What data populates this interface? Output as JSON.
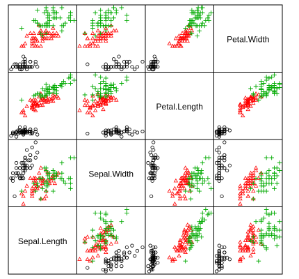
{
  "chart_data": {
    "type": "scatter",
    "kind": "scatterplot-matrix",
    "variables": [
      "Sepal.Length",
      "Sepal.Width",
      "Petal.Length",
      "Petal.Width"
    ],
    "diagonal_labels": {
      "Sepal.Length": "Sepal.Length",
      "Sepal.Width": "Sepal.Width",
      "Petal.Length": "Petal.Length",
      "Petal.Width": "Petal.Width"
    },
    "ranges": {
      "Sepal.Length": [
        4.3,
        7.9
      ],
      "Sepal.Width": [
        2.0,
        4.4
      ],
      "Petal.Length": [
        1.0,
        6.9
      ],
      "Petal.Width": [
        0.1,
        2.5
      ]
    },
    "grid": false,
    "series": [
      {
        "color": "#000000",
        "marker": "circle",
        "points": [
          [
            5.1,
            3.5,
            1.4,
            0.2
          ],
          [
            4.9,
            3.0,
            1.4,
            0.2
          ],
          [
            4.7,
            3.2,
            1.3,
            0.2
          ],
          [
            4.6,
            3.1,
            1.5,
            0.2
          ],
          [
            5.0,
            3.6,
            1.4,
            0.2
          ],
          [
            5.4,
            3.9,
            1.7,
            0.4
          ],
          [
            4.6,
            3.4,
            1.4,
            0.3
          ],
          [
            5.0,
            3.4,
            1.5,
            0.2
          ],
          [
            4.4,
            2.9,
            1.4,
            0.2
          ],
          [
            4.9,
            3.1,
            1.5,
            0.1
          ],
          [
            5.4,
            3.7,
            1.5,
            0.2
          ],
          [
            4.8,
            3.4,
            1.6,
            0.2
          ],
          [
            4.8,
            3.0,
            1.4,
            0.1
          ],
          [
            4.3,
            3.0,
            1.1,
            0.1
          ],
          [
            5.8,
            4.0,
            1.2,
            0.2
          ],
          [
            5.7,
            4.4,
            1.5,
            0.4
          ],
          [
            5.4,
            3.9,
            1.3,
            0.4
          ],
          [
            5.1,
            3.5,
            1.4,
            0.3
          ],
          [
            5.7,
            3.8,
            1.7,
            0.3
          ],
          [
            5.1,
            3.8,
            1.5,
            0.3
          ],
          [
            5.4,
            3.4,
            1.7,
            0.2
          ],
          [
            5.1,
            3.7,
            1.5,
            0.4
          ],
          [
            4.6,
            3.6,
            1.0,
            0.2
          ],
          [
            5.1,
            3.3,
            1.7,
            0.5
          ],
          [
            4.8,
            3.4,
            1.9,
            0.2
          ],
          [
            5.0,
            3.0,
            1.6,
            0.2
          ],
          [
            5.0,
            3.4,
            1.6,
            0.4
          ],
          [
            5.2,
            3.5,
            1.5,
            0.2
          ],
          [
            5.2,
            3.4,
            1.4,
            0.2
          ],
          [
            4.7,
            3.2,
            1.6,
            0.2
          ],
          [
            4.8,
            3.1,
            1.6,
            0.2
          ],
          [
            5.4,
            3.4,
            1.5,
            0.4
          ],
          [
            5.2,
            4.1,
            1.5,
            0.1
          ],
          [
            5.5,
            4.2,
            1.4,
            0.2
          ],
          [
            4.9,
            3.1,
            1.5,
            0.2
          ],
          [
            5.0,
            3.2,
            1.2,
            0.2
          ],
          [
            5.5,
            3.5,
            1.3,
            0.2
          ],
          [
            4.9,
            3.6,
            1.4,
            0.1
          ],
          [
            4.4,
            3.0,
            1.3,
            0.2
          ],
          [
            5.1,
            3.4,
            1.5,
            0.2
          ],
          [
            5.0,
            3.5,
            1.3,
            0.3
          ],
          [
            4.5,
            2.3,
            1.3,
            0.3
          ],
          [
            4.4,
            3.2,
            1.3,
            0.2
          ],
          [
            5.0,
            3.5,
            1.6,
            0.6
          ],
          [
            5.1,
            3.8,
            1.9,
            0.4
          ],
          [
            4.8,
            3.0,
            1.4,
            0.3
          ],
          [
            5.1,
            3.8,
            1.6,
            0.2
          ],
          [
            4.6,
            3.2,
            1.4,
            0.2
          ],
          [
            5.3,
            3.7,
            1.5,
            0.2
          ],
          [
            5.0,
            3.3,
            1.4,
            0.2
          ]
        ]
      },
      {
        "color": "#ff0000",
        "marker": "triangle",
        "points": [
          [
            7.0,
            3.2,
            4.7,
            1.4
          ],
          [
            6.4,
            3.2,
            4.5,
            1.5
          ],
          [
            6.9,
            3.1,
            4.9,
            1.5
          ],
          [
            5.5,
            2.3,
            4.0,
            1.3
          ],
          [
            6.5,
            2.8,
            4.6,
            1.5
          ],
          [
            5.7,
            2.8,
            4.5,
            1.3
          ],
          [
            6.3,
            3.3,
            4.7,
            1.6
          ],
          [
            4.9,
            2.4,
            3.3,
            1.0
          ],
          [
            6.6,
            2.9,
            4.6,
            1.3
          ],
          [
            5.2,
            2.7,
            3.9,
            1.4
          ],
          [
            5.0,
            2.0,
            3.5,
            1.0
          ],
          [
            5.9,
            3.0,
            4.2,
            1.5
          ],
          [
            6.0,
            2.2,
            4.0,
            1.0
          ],
          [
            6.1,
            2.9,
            4.7,
            1.4
          ],
          [
            5.6,
            2.9,
            3.6,
            1.3
          ],
          [
            6.7,
            3.1,
            4.4,
            1.4
          ],
          [
            5.6,
            3.0,
            4.5,
            1.5
          ],
          [
            5.8,
            2.7,
            4.1,
            1.0
          ],
          [
            6.2,
            2.2,
            4.5,
            1.5
          ],
          [
            5.6,
            2.5,
            3.9,
            1.1
          ],
          [
            5.9,
            3.2,
            4.8,
            1.8
          ],
          [
            6.1,
            2.8,
            4.0,
            1.3
          ],
          [
            6.3,
            2.5,
            4.9,
            1.5
          ],
          [
            6.1,
            2.8,
            4.7,
            1.2
          ],
          [
            6.4,
            2.9,
            4.3,
            1.3
          ],
          [
            6.6,
            3.0,
            4.4,
            1.4
          ],
          [
            6.8,
            2.8,
            4.8,
            1.4
          ],
          [
            6.7,
            3.0,
            5.0,
            1.7
          ],
          [
            6.0,
            2.9,
            4.5,
            1.5
          ],
          [
            5.7,
            2.6,
            3.5,
            1.0
          ],
          [
            5.5,
            2.4,
            3.8,
            1.1
          ],
          [
            5.5,
            2.4,
            3.7,
            1.0
          ],
          [
            5.8,
            2.7,
            3.9,
            1.2
          ],
          [
            6.0,
            2.7,
            5.1,
            1.6
          ],
          [
            5.4,
            3.0,
            4.5,
            1.5
          ],
          [
            6.0,
            3.4,
            4.5,
            1.6
          ],
          [
            6.7,
            3.1,
            4.7,
            1.5
          ],
          [
            6.3,
            2.3,
            4.4,
            1.3
          ],
          [
            5.6,
            3.0,
            4.1,
            1.3
          ],
          [
            5.5,
            2.5,
            4.0,
            1.3
          ],
          [
            5.5,
            2.6,
            4.4,
            1.2
          ],
          [
            6.1,
            3.0,
            4.6,
            1.4
          ],
          [
            5.8,
            2.6,
            4.0,
            1.2
          ],
          [
            5.0,
            2.3,
            3.3,
            1.0
          ],
          [
            5.6,
            2.7,
            4.2,
            1.3
          ],
          [
            5.7,
            3.0,
            4.2,
            1.2
          ],
          [
            5.7,
            2.9,
            4.2,
            1.3
          ],
          [
            6.2,
            2.9,
            4.3,
            1.3
          ],
          [
            5.1,
            2.5,
            3.0,
            1.1
          ],
          [
            5.7,
            2.8,
            4.1,
            1.3
          ]
        ]
      },
      {
        "color": "#00aa00",
        "marker": "plus",
        "points": [
          [
            6.3,
            3.3,
            6.0,
            2.5
          ],
          [
            5.8,
            2.7,
            5.1,
            1.9
          ],
          [
            7.1,
            3.0,
            5.9,
            2.1
          ],
          [
            6.3,
            2.9,
            5.6,
            1.8
          ],
          [
            6.5,
            3.0,
            5.8,
            2.2
          ],
          [
            7.6,
            3.0,
            6.6,
            2.1
          ],
          [
            4.9,
            2.5,
            4.5,
            1.7
          ],
          [
            7.3,
            2.9,
            6.3,
            1.8
          ],
          [
            6.7,
            2.5,
            5.8,
            1.8
          ],
          [
            7.2,
            3.6,
            6.1,
            2.5
          ],
          [
            6.5,
            3.2,
            5.1,
            2.0
          ],
          [
            6.4,
            2.7,
            5.3,
            1.9
          ],
          [
            6.8,
            3.0,
            5.5,
            2.1
          ],
          [
            5.7,
            2.5,
            5.0,
            2.0
          ],
          [
            5.8,
            2.8,
            5.1,
            2.4
          ],
          [
            6.4,
            3.2,
            5.3,
            2.3
          ],
          [
            6.5,
            3.0,
            5.5,
            1.8
          ],
          [
            7.7,
            3.8,
            6.7,
            2.2
          ],
          [
            7.7,
            2.6,
            6.9,
            2.3
          ],
          [
            6.0,
            2.2,
            5.0,
            1.5
          ],
          [
            6.9,
            3.2,
            5.7,
            2.3
          ],
          [
            5.6,
            2.8,
            4.9,
            2.0
          ],
          [
            7.7,
            2.8,
            6.7,
            2.0
          ],
          [
            6.3,
            2.7,
            4.9,
            1.8
          ],
          [
            6.7,
            3.3,
            5.7,
            2.1
          ],
          [
            7.2,
            3.2,
            6.0,
            1.8
          ],
          [
            6.2,
            2.8,
            4.8,
            1.8
          ],
          [
            6.1,
            3.0,
            4.9,
            1.8
          ],
          [
            6.4,
            2.8,
            5.6,
            2.1
          ],
          [
            7.2,
            3.0,
            5.8,
            1.6
          ],
          [
            7.4,
            2.8,
            6.1,
            1.9
          ],
          [
            7.9,
            3.8,
            6.4,
            2.0
          ],
          [
            6.4,
            2.8,
            5.6,
            2.2
          ],
          [
            6.3,
            2.8,
            5.1,
            1.5
          ],
          [
            6.1,
            2.6,
            5.6,
            1.4
          ],
          [
            7.7,
            3.0,
            6.1,
            2.3
          ],
          [
            6.3,
            3.4,
            5.6,
            2.4
          ],
          [
            6.4,
            3.1,
            5.5,
            1.8
          ],
          [
            6.0,
            3.0,
            4.8,
            1.8
          ],
          [
            6.9,
            3.1,
            5.4,
            2.1
          ],
          [
            6.7,
            3.1,
            5.6,
            2.4
          ],
          [
            6.9,
            3.1,
            5.1,
            2.3
          ],
          [
            5.8,
            2.7,
            5.1,
            1.9
          ],
          [
            6.8,
            3.2,
            5.9,
            2.3
          ],
          [
            6.7,
            3.3,
            5.7,
            2.5
          ],
          [
            6.7,
            3.0,
            5.2,
            2.3
          ],
          [
            6.3,
            2.5,
            5.0,
            1.9
          ],
          [
            6.5,
            3.0,
            5.2,
            2.0
          ],
          [
            6.2,
            3.4,
            5.4,
            2.3
          ],
          [
            5.9,
            3.0,
            5.1,
            1.8
          ]
        ]
      }
    ]
  },
  "colors": {
    "frame": "#000000",
    "background": "#ffffff"
  }
}
